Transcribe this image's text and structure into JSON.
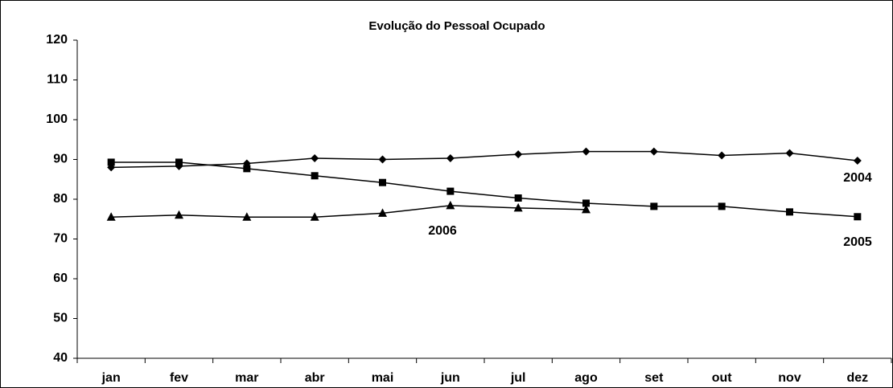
{
  "chart_data": {
    "type": "line",
    "title": "Evolução do Pessoal Ocupado",
    "categories": [
      "jan",
      "fev",
      "mar",
      "abr",
      "mai",
      "jun",
      "jul",
      "ago",
      "set",
      "out",
      "nov",
      "dez"
    ],
    "series": [
      {
        "name": "2004",
        "color": "#000000",
        "marker": "diamond",
        "values": [
          88,
          88.3,
          89,
          90.3,
          90,
          90.3,
          91.3,
          92,
          92,
          91,
          91.6,
          89.7
        ]
      },
      {
        "name": "2005",
        "color": "#000000",
        "marker": "square",
        "values": [
          89.3,
          89.3,
          87.7,
          85.9,
          84.2,
          82,
          80.3,
          79,
          78.2,
          78.2,
          76.8,
          75.6
        ]
      },
      {
        "name": "2006",
        "color": "#000000",
        "marker": "triangle",
        "values": [
          75.5,
          76,
          75.5,
          75.5,
          76.5,
          78.4,
          77.8,
          77.4,
          null,
          null,
          null,
          null
        ]
      }
    ],
    "ylim": [
      40,
      120
    ],
    "yticks": [
      40,
      50,
      60,
      70,
      80,
      90,
      100,
      110,
      120
    ],
    "grid": false
  }
}
